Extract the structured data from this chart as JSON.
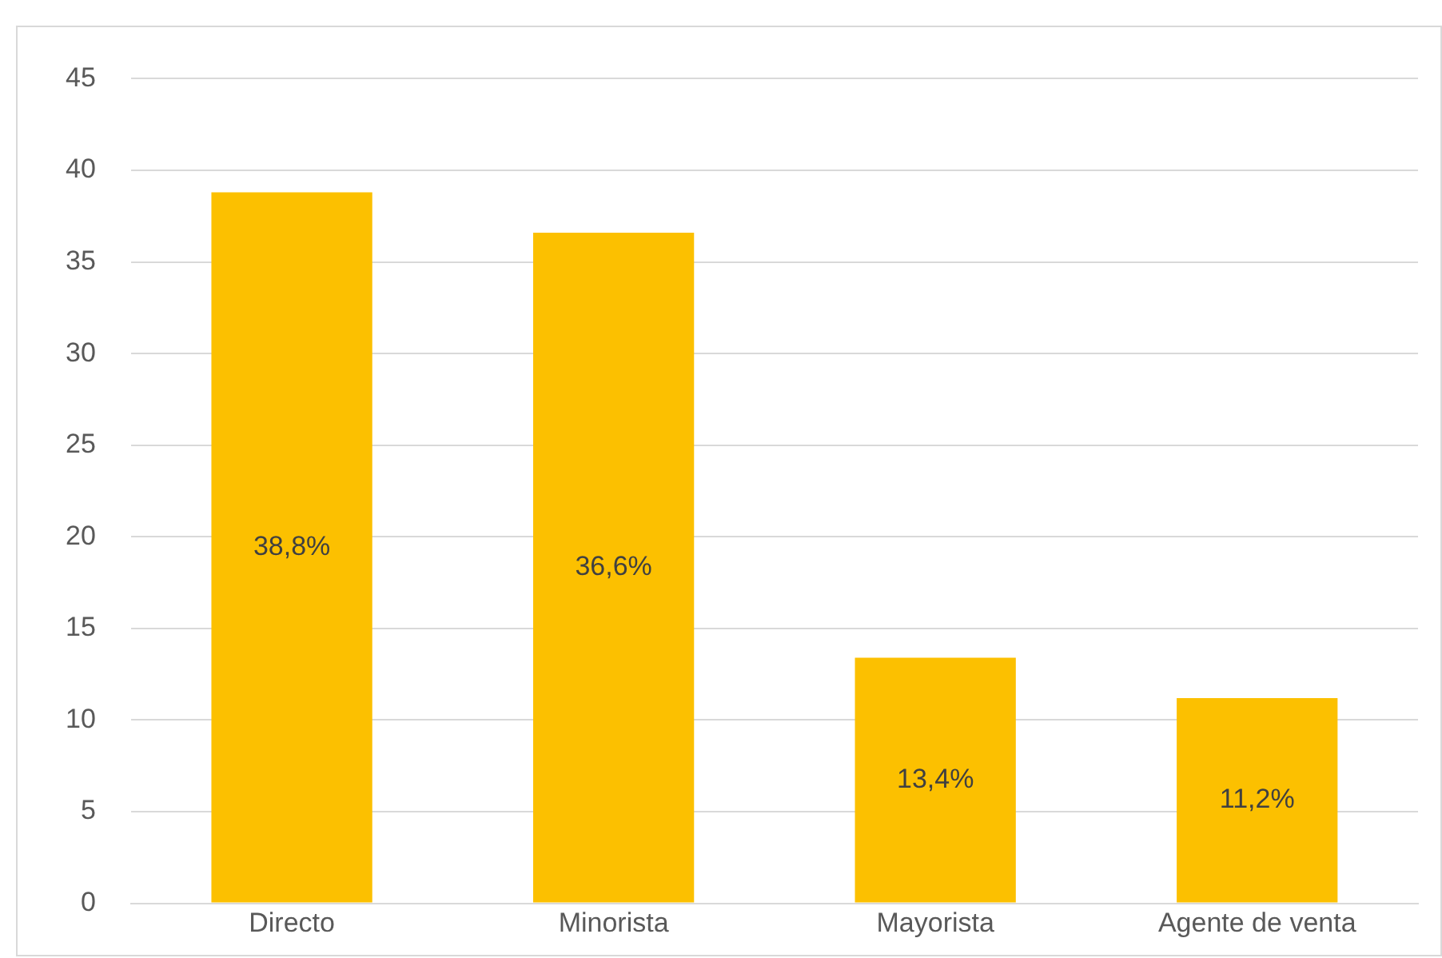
{
  "chart_data": {
    "type": "bar",
    "categories": [
      "Directo",
      "Minorista",
      "Mayorista",
      "Agente de venta"
    ],
    "values": [
      38.8,
      36.6,
      13.4,
      11.2
    ],
    "value_labels": [
      "38,8%",
      "36,6%",
      "13,4%",
      "11,2%"
    ],
    "color": "#fcc000",
    "ylim": [
      0,
      45
    ],
    "yticks": [
      0,
      5,
      10,
      15,
      20,
      25,
      30,
      35,
      40,
      45
    ],
    "grid": "y",
    "legend": false
  }
}
